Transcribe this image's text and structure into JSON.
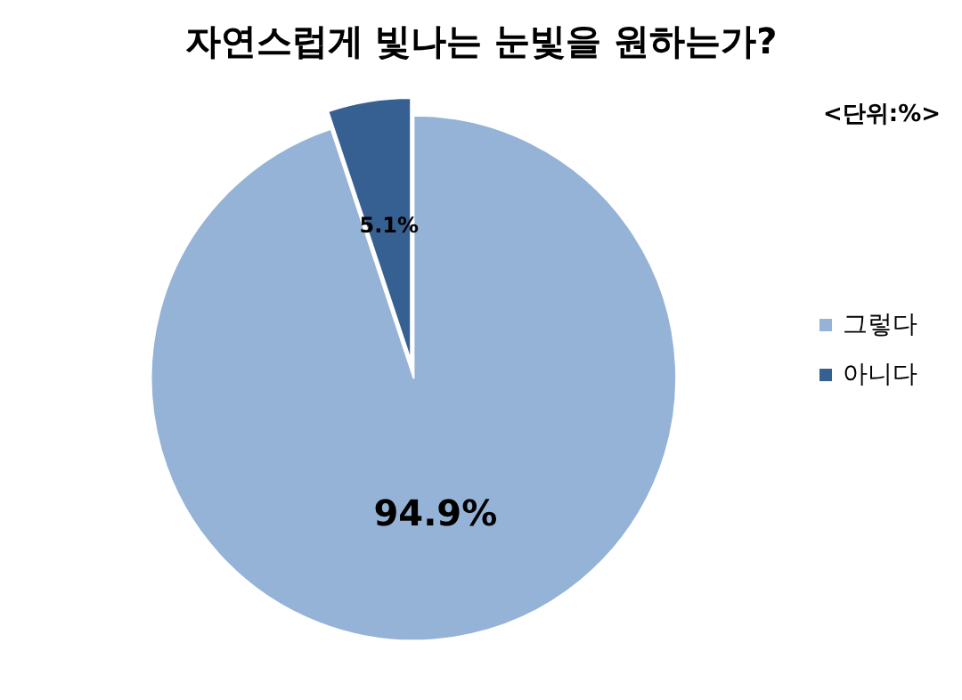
{
  "chart_data": {
    "type": "pie",
    "title": "자연스럽게 빛나는 눈빛을 원하는가?",
    "annotations": [
      "<단위:%>"
    ],
    "categories": [
      "그렇다",
      "아니다"
    ],
    "values": [
      94.9,
      5.1
    ],
    "colors": [
      "#95b3d7",
      "#376092"
    ],
    "value_labels": [
      "94.9%",
      "5.1%"
    ],
    "legend": "right"
  }
}
